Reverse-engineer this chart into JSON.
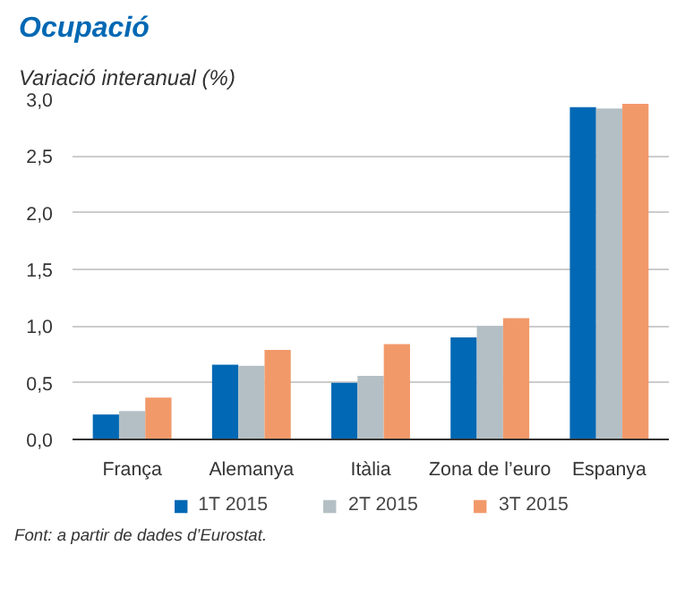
{
  "chart_data": {
    "type": "bar",
    "title": "Ocupació",
    "subtitle": "Variació interanual (%)",
    "categories": [
      "França",
      "Alemanya",
      "Itàlia",
      "Zona de l’euro",
      "Espanya"
    ],
    "series": [
      {
        "name": "1T 2015",
        "color": "#0068b4",
        "values": [
          0.22,
          0.66,
          0.5,
          0.9,
          2.93
        ]
      },
      {
        "name": "2T 2015",
        "color": "#b3bfc4",
        "values": [
          0.25,
          0.65,
          0.56,
          1.0,
          2.92
        ]
      },
      {
        "name": "3T 2015",
        "color": "#f2996a",
        "values": [
          0.37,
          0.79,
          0.84,
          1.07,
          2.96
        ]
      }
    ],
    "ylim": [
      0,
      3
    ],
    "yticks": [
      {
        "value": 0,
        "label": "0,0"
      },
      {
        "value": 0.5,
        "label": "0,5"
      },
      {
        "value": 1,
        "label": "1,0"
      },
      {
        "value": 1.5,
        "label": "1,5"
      },
      {
        "value": 2,
        "label": "2,0"
      },
      {
        "value": 2.5,
        "label": "2,5"
      },
      {
        "value": 3,
        "label": "3,0"
      }
    ],
    "grid": "y",
    "legend": "bottom",
    "annotations": [
      "Font: a partir de dades d’Eurostat."
    ]
  }
}
